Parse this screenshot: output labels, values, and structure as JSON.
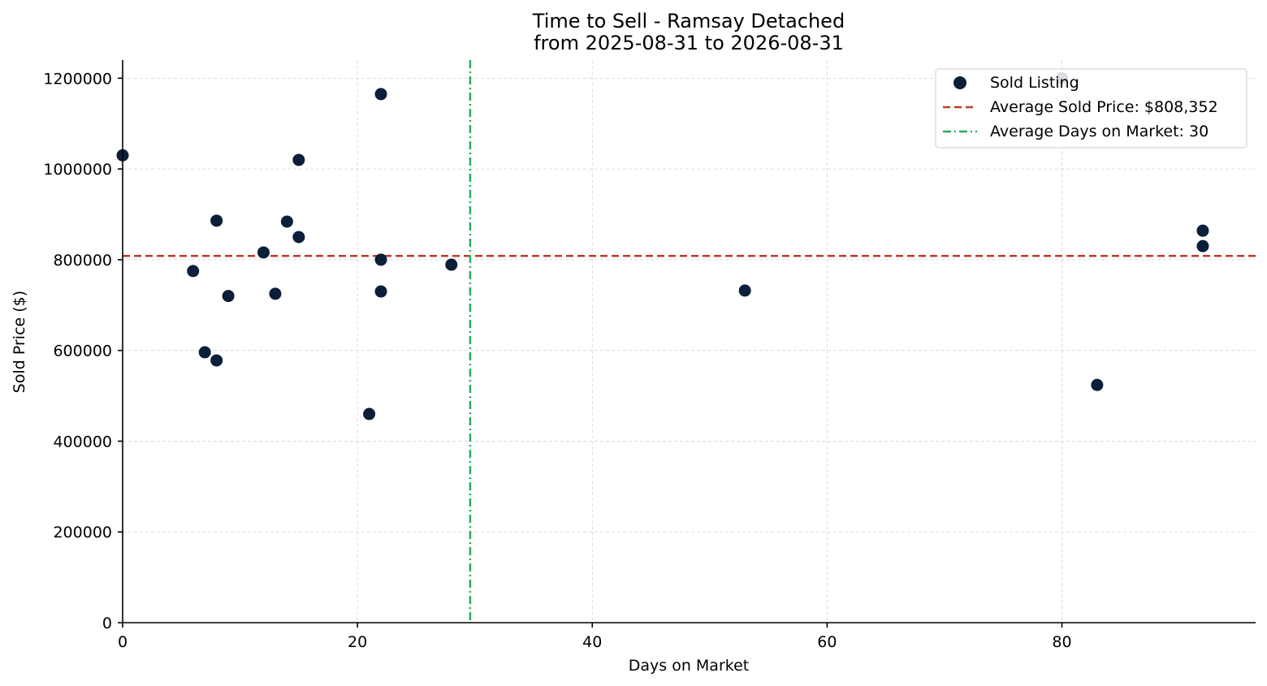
{
  "chart_data": {
    "type": "scatter",
    "title_line1": "Time to Sell - Ramsay Detached",
    "title_line2": "from 2025-08-31 to 2026-08-31",
    "xlabel": "Days on Market",
    "ylabel": "Sold Price ($)",
    "xlim": [
      0,
      96.5
    ],
    "ylim": [
      0,
      1240000
    ],
    "xticks": [
      0,
      20,
      40,
      60,
      80
    ],
    "xtick_labels": [
      "0",
      "20",
      "40",
      "60",
      "80"
    ],
    "yticks": [
      0,
      200000,
      400000,
      600000,
      800000,
      1000000,
      1200000
    ],
    "ytick_labels": [
      "0",
      "200000",
      "400000",
      "600000",
      "800000",
      "1000000",
      "1200000"
    ],
    "grid": true,
    "legend_position": "top-right",
    "series": [
      {
        "name": "Sold Listing",
        "color": "#0b1f3a",
        "points": [
          {
            "x": 0,
            "y": 1030000
          },
          {
            "x": 6,
            "y": 775000
          },
          {
            "x": 7,
            "y": 596000
          },
          {
            "x": 8,
            "y": 886000
          },
          {
            "x": 8,
            "y": 578000
          },
          {
            "x": 9,
            "y": 720000
          },
          {
            "x": 12,
            "y": 816000
          },
          {
            "x": 13,
            "y": 725000
          },
          {
            "x": 14,
            "y": 884000
          },
          {
            "x": 15,
            "y": 1020000
          },
          {
            "x": 15,
            "y": 850000
          },
          {
            "x": 21,
            "y": 460000
          },
          {
            "x": 22,
            "y": 1165000
          },
          {
            "x": 22,
            "y": 800000
          },
          {
            "x": 22,
            "y": 730000
          },
          {
            "x": 28,
            "y": 789000
          },
          {
            "x": 53,
            "y": 732000
          },
          {
            "x": 80,
            "y": 1200000
          },
          {
            "x": 83,
            "y": 524000
          },
          {
            "x": 92,
            "y": 864000
          },
          {
            "x": 92,
            "y": 830000
          }
        ]
      }
    ],
    "reference_lines": [
      {
        "name": "Average Sold Price: $808,352",
        "orientation": "horizontal",
        "value": 808352,
        "color": "#c0392b",
        "style": "dashed"
      },
      {
        "name": "Average Days on Market: 30",
        "orientation": "vertical",
        "value": 29.6,
        "color": "#27ae60",
        "style": "dashdot"
      }
    ]
  }
}
